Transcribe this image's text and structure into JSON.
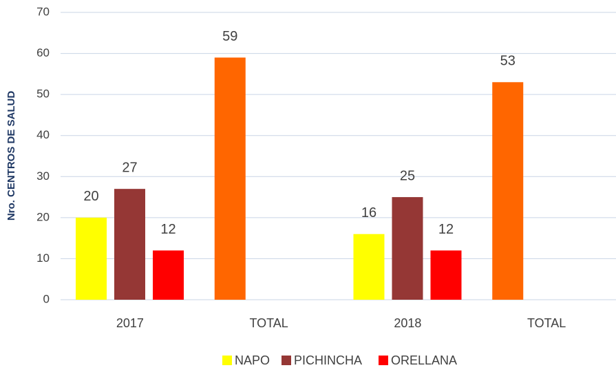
{
  "chart_data": {
    "type": "bar",
    "y_label": "Nro. CENTROS DE SALUD",
    "categories": [
      "2017",
      "TOTAL",
      "2018",
      "TOTAL"
    ],
    "series": [
      {
        "name": "NAPO",
        "color": "#ffff00",
        "values": [
          20,
          null,
          16,
          null
        ]
      },
      {
        "name": "PICHINCHA",
        "color": "#953735",
        "values": [
          27,
          null,
          25,
          null
        ]
      },
      {
        "name": "ORELLANA",
        "color": "#ff0000",
        "values": [
          12,
          null,
          12,
          null
        ]
      },
      {
        "color": "#ff6600",
        "values": [
          null,
          59,
          null,
          53
        ]
      }
    ],
    "ylim": [
      0,
      70
    ],
    "yticks": [
      0,
      10,
      20,
      30,
      40,
      50,
      60,
      70
    ],
    "grid": true
  }
}
